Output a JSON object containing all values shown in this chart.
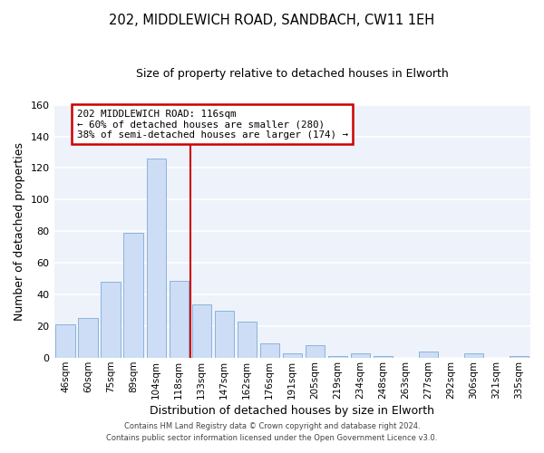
{
  "title": "202, MIDDLEWICH ROAD, SANDBACH, CW11 1EH",
  "subtitle": "Size of property relative to detached houses in Elworth",
  "xlabel": "Distribution of detached houses by size in Elworth",
  "ylabel": "Number of detached properties",
  "bar_labels": [
    "46sqm",
    "60sqm",
    "75sqm",
    "89sqm",
    "104sqm",
    "118sqm",
    "133sqm",
    "147sqm",
    "162sqm",
    "176sqm",
    "191sqm",
    "205sqm",
    "219sqm",
    "234sqm",
    "248sqm",
    "263sqm",
    "277sqm",
    "292sqm",
    "306sqm",
    "321sqm",
    "335sqm"
  ],
  "bar_values": [
    21,
    25,
    48,
    79,
    126,
    49,
    34,
    30,
    23,
    9,
    3,
    8,
    1,
    3,
    1,
    0,
    4,
    0,
    3,
    0,
    1
  ],
  "bar_color": "#ccddf5",
  "bar_edge_color": "#8ab4dc",
  "vline_color": "#cc0000",
  "vline_x": 5.5,
  "ylim": [
    0,
    160
  ],
  "yticks": [
    0,
    20,
    40,
    60,
    80,
    100,
    120,
    140,
    160
  ],
  "annotation_title": "202 MIDDLEWICH ROAD: 116sqm",
  "annotation_line1": "← 60% of detached houses are smaller (280)",
  "annotation_line2": "38% of semi-detached houses are larger (174) →",
  "annotation_box_facecolor": "#ffffff",
  "annotation_box_edgecolor": "#cc0000",
  "footer1": "Contains HM Land Registry data © Crown copyright and database right 2024.",
  "footer2": "Contains public sector information licensed under the Open Government Licence v3.0.",
  "plot_bg_color": "#eef2fa",
  "fig_bg_color": "#ffffff",
  "grid_color": "#ffffff",
  "title_fontsize": 10.5,
  "subtitle_fontsize": 9,
  "ylabel_text": "Number of detached properties"
}
